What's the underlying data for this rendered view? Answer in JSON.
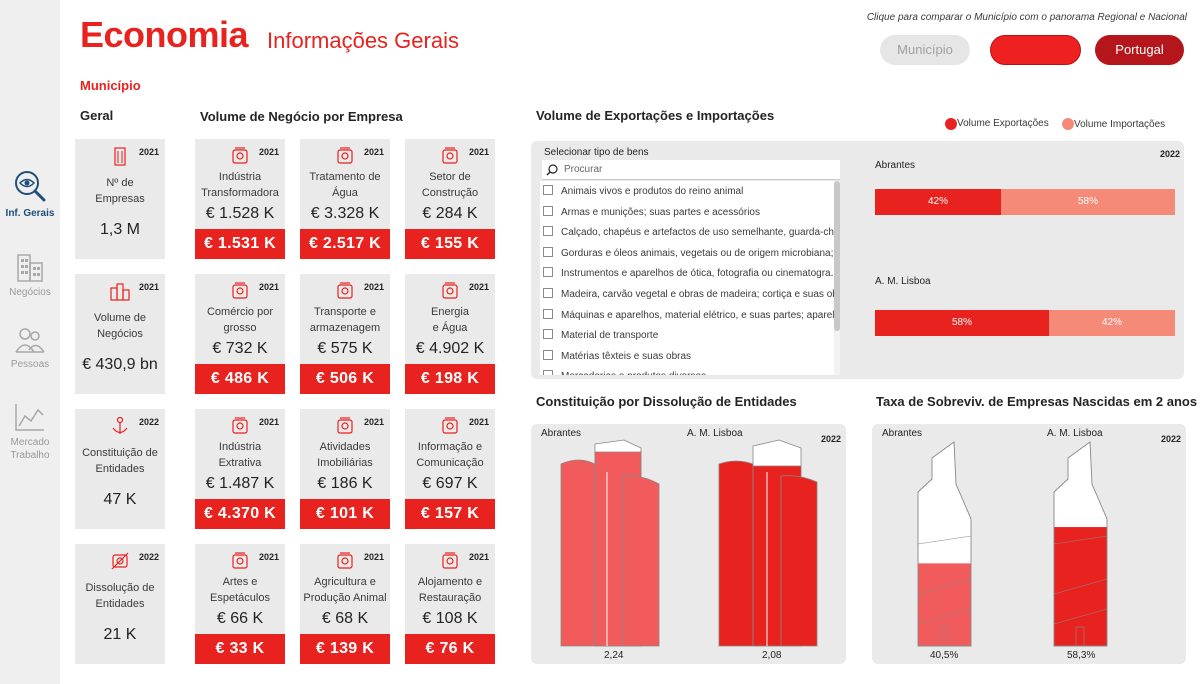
{
  "header": {
    "title": "Economia",
    "subtitle": "Informações Gerais",
    "hint": "Clique para comparar o Município com o panorama Regional e Nacional",
    "buttons": {
      "municipio": "Município",
      "regional": "",
      "portugal": "Portugal"
    },
    "scope_label": "Município"
  },
  "sidebar": {
    "items": [
      {
        "label": "Inf. Gerais",
        "icon": "magnifier-eye-icon",
        "active": true
      },
      {
        "label": "Negócios",
        "icon": "buildings-icon"
      },
      {
        "label": "Pessoas",
        "icon": "people-icon"
      },
      {
        "label": "Mercado Trabalho",
        "icon": "line-chart-icon"
      }
    ]
  },
  "geral": {
    "title": "Geral",
    "cards": [
      {
        "label": "Nº de\nEmpresas",
        "value": "1,3 M",
        "year": "2021",
        "icon": "building-icon"
      },
      {
        "label": "Volume de\nNegócios",
        "value": "€ 430,9 bn",
        "year": "2021",
        "icon": "buildings-icon"
      },
      {
        "label": "Constituição de\nEntidades",
        "value": "47 K",
        "year": "2022",
        "icon": "anchor-icon"
      },
      {
        "label": "Dissolução de\nEntidades",
        "value": "21 K",
        "year": "2022",
        "icon": "dissolve-icon"
      }
    ]
  },
  "volume": {
    "title": "Volume de Negócio por Empresa",
    "cards": [
      {
        "label": "Indústria\nTransformadora",
        "value": "€ 1.528 K",
        "compare": "€ 1.531 K",
        "year": "2021",
        "icon": "factory-worker-icon"
      },
      {
        "label": "Tratamento de\nÁgua",
        "value": "€ 3.328 K",
        "compare": "€ 2.517 K",
        "year": "2021",
        "icon": "water-recycle-icon"
      },
      {
        "label": "Setor de\nConstrução",
        "value": "€ 284 K",
        "compare": "€ 155 K",
        "year": "2021",
        "icon": "crane-icon"
      },
      {
        "label": "Comércio por\ngrosso",
        "value": "€ 732 K",
        "compare": "€ 486 K",
        "year": "2021",
        "icon": "shop-icon"
      },
      {
        "label": "Transporte e\narmazenagem",
        "value": "€ 575 K",
        "compare": "€ 506 K",
        "year": "2021",
        "icon": "truck-icon"
      },
      {
        "label": "Energia\ne Água",
        "value": "€ 4.902 K",
        "compare": "€ 198 K",
        "year": "2021",
        "icon": "energy-icon"
      },
      {
        "label": "Indústria\nExtrativa",
        "value": "€ 1.487 K",
        "compare": "€ 4.370 K",
        "year": "2021",
        "icon": "mining-icon"
      },
      {
        "label": "Atividades\nImobiliárias",
        "value": "€ 186 K",
        "compare": "€ 101 K",
        "year": "2021",
        "icon": "house-icon"
      },
      {
        "label": "Informação e\nComunicação",
        "value": "€ 697 K",
        "compare": "€ 157 K",
        "year": "2021",
        "icon": "info-device-icon"
      },
      {
        "label": "Artes e\nEspetáculos",
        "value": "€ 66 K",
        "compare": "€ 33 K",
        "year": "2021",
        "icon": "theater-masks-icon"
      },
      {
        "label": "Agricultura e\nProdução Animal",
        "value": "€ 68 K",
        "compare": "€ 139 K",
        "year": "2021",
        "icon": "farm-icon"
      },
      {
        "label": "Alojamento e\nRestauração",
        "value": "€ 108 K",
        "compare": "€ 76 K",
        "year": "2021",
        "icon": "hotel-icon"
      }
    ]
  },
  "exports": {
    "title": "Volume de Exportações e Importações",
    "legend": [
      {
        "label": "Volume Exportações",
        "color": "#e8231f"
      },
      {
        "label": "Volume Importações",
        "color": "#f58a78"
      }
    ],
    "filter_title": "Selecionar tipo de bens",
    "search_placeholder": "Procurar",
    "goods": [
      "Animais vivos e produtos do reino animal",
      "Armas e munições; suas partes e acessórios",
      "Calçado, chapéus e artefactos de uso semelhante, guarda-chu...",
      "Gorduras e óleos animais, vegetais ou de origem microbiana; ...",
      "Instrumentos e aparelhos de ótica, fotografia ou cinematogra...",
      "Madeira, carvão vegetal e obras de madeira; cortiça e suas ob...",
      "Máquinas e aparelhos, material elétrico, e suas partes; aparel...",
      "Material de transporte",
      "Matérias têxteis e suas obras",
      "Mercadorias e produtos diversos"
    ],
    "year": "2022",
    "regions": [
      {
        "name": "Abrantes",
        "export_pct": 42,
        "import_pct": 58,
        "export_label": "42%",
        "import_label": "58%"
      },
      {
        "name": "A. M. Lisboa",
        "export_pct": 58,
        "import_pct": 42,
        "export_label": "58%",
        "import_label": "42%"
      }
    ]
  },
  "constituicao": {
    "title": "Constituição por Dissolução de Entidades",
    "year": "2022",
    "left_name": "Abrantes",
    "right_name": "A. M. Lisboa",
    "left_value": "2,24",
    "right_value": "2,08",
    "left_fill": 0.95,
    "right_fill": 0.98
  },
  "sobrevivencia": {
    "title": "Taxa de Sobreviv. de Empresas Nascidas em 2 anos",
    "year": "2022",
    "left_name": "Abrantes",
    "right_name": "A. M. Lisboa",
    "left_value": "40,5%",
    "right_value": "58,3%",
    "left_fill": 0.405,
    "right_fill": 0.583
  }
}
